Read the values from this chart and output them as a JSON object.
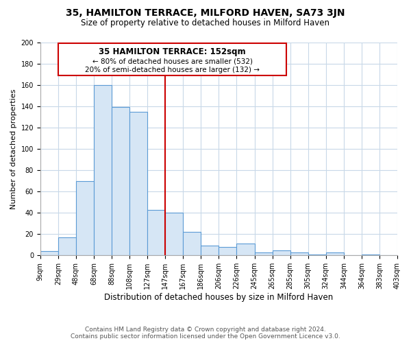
{
  "title": "35, HAMILTON TERRACE, MILFORD HAVEN, SA73 3JN",
  "subtitle": "Size of property relative to detached houses in Milford Haven",
  "xlabel": "Distribution of detached houses by size in Milford Haven",
  "ylabel": "Number of detached properties",
  "footnote1": "Contains HM Land Registry data © Crown copyright and database right 2024.",
  "footnote2": "Contains public sector information licensed under the Open Government Licence v3.0.",
  "bin_labels": [
    "9sqm",
    "29sqm",
    "48sqm",
    "68sqm",
    "88sqm",
    "108sqm",
    "127sqm",
    "147sqm",
    "167sqm",
    "186sqm",
    "206sqm",
    "226sqm",
    "245sqm",
    "265sqm",
    "285sqm",
    "305sqm",
    "324sqm",
    "344sqm",
    "364sqm",
    "383sqm",
    "403sqm"
  ],
  "bar_values": [
    4,
    17,
    70,
    160,
    139,
    135,
    43,
    40,
    22,
    9,
    8,
    11,
    3,
    5,
    3,
    1,
    3,
    0,
    1,
    0
  ],
  "bar_color": "#d6e6f5",
  "bar_edge_color": "#5b9bd5",
  "vline_color": "#cc0000",
  "vline_x": 7,
  "annotation_border_color": "#cc0000",
  "annotation_line1": "35 HAMILTON TERRACE: 152sqm",
  "annotation_line2": "← 80% of detached houses are smaller (532)",
  "annotation_line3": "20% of semi-detached houses are larger (132) →",
  "ylim": [
    0,
    200
  ],
  "yticks": [
    0,
    20,
    40,
    60,
    80,
    100,
    120,
    140,
    160,
    180,
    200
  ],
  "grid_color": "#c8d8e8",
  "spine_color": "#aaaaaa",
  "title_fontsize": 10,
  "subtitle_fontsize": 8.5,
  "ylabel_fontsize": 8,
  "xlabel_fontsize": 8.5,
  "tick_fontsize": 7,
  "footnote_fontsize": 6.5,
  "footnote_color": "#555555"
}
